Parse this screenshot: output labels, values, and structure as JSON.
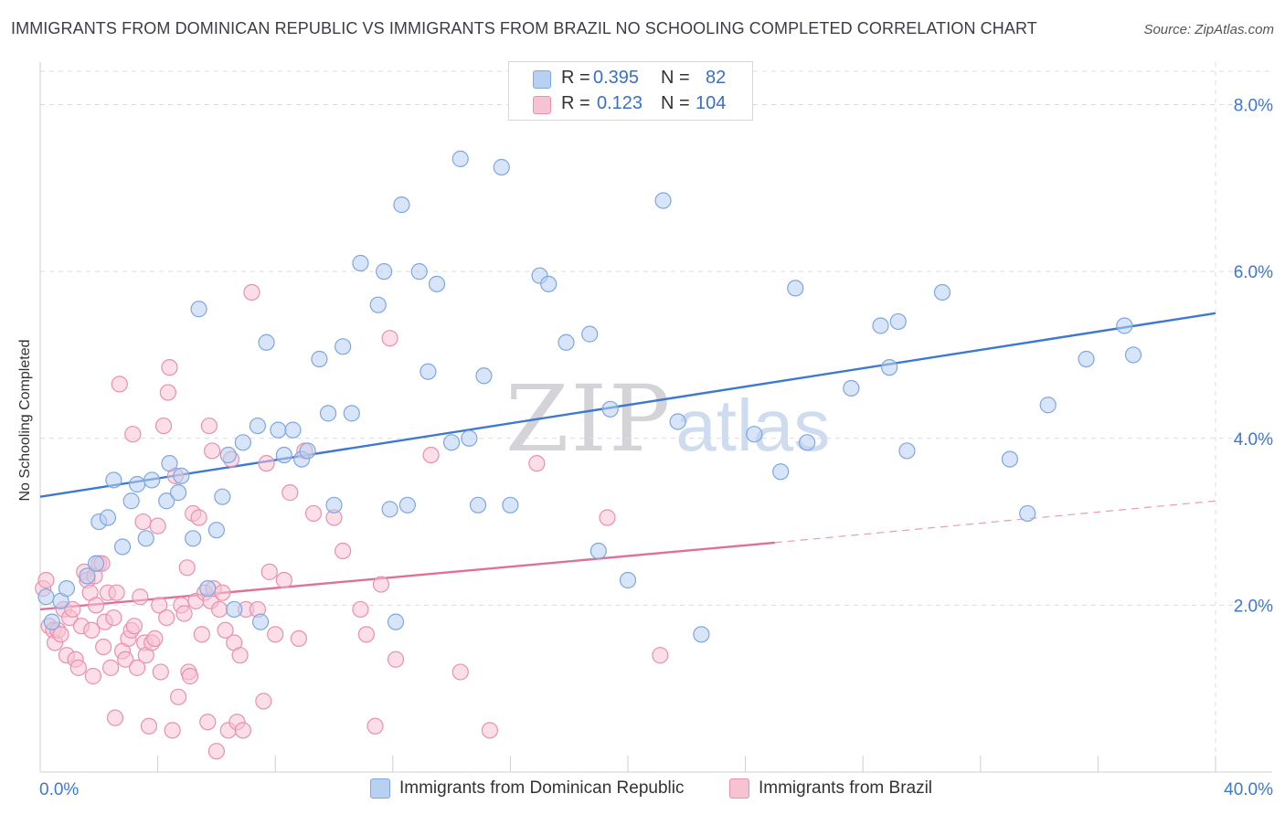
{
  "title": "IMMIGRANTS FROM DOMINICAN REPUBLIC VS IMMIGRANTS FROM BRAZIL NO SCHOOLING COMPLETED CORRELATION CHART",
  "source": "Source: ZipAtlas.com",
  "watermark": {
    "zip": "ZIP",
    "atlas": "atlas"
  },
  "legend": {
    "rows": [
      {
        "r_label": "R =",
        "r_value": "0.395",
        "n_label": "N =",
        "n_value": "82"
      },
      {
        "r_label": "R =",
        "r_value": "0.123",
        "n_label": "N =",
        "n_value": "104"
      }
    ]
  },
  "colors": {
    "dominican_fill": "#b8d0f2",
    "dominican_stroke": "#7fa7dc",
    "dominican_line": "#3d78d1",
    "brazil_fill": "#f7c3d3",
    "brazil_stroke": "#e891ae",
    "brazil_line": "#e0709a",
    "axis_value": "#3d78d1",
    "grid": "#dcdce0"
  },
  "chart_data": {
    "type": "scatter",
    "title": "IMMIGRANTS FROM DOMINICAN REPUBLIC VS IMMIGRANTS FROM BRAZIL NO SCHOOLING COMPLETED CORRELATION CHART",
    "xlabel": "",
    "ylabel": "No Schooling Completed",
    "xlim": [
      0,
      40
    ],
    "ylim": [
      0,
      8.4
    ],
    "x_tick_labels": [
      "0.0%",
      "40.0%"
    ],
    "y_ticks": [
      2,
      4,
      6,
      8
    ],
    "y_tick_labels": [
      "2.0%",
      "4.0%",
      "6.0%",
      "8.0%"
    ],
    "grid": true,
    "legend_position": "top-center",
    "series": [
      {
        "name": "Immigrants from Dominican Republic",
        "points": [
          [
            0.2,
            2.1
          ],
          [
            0.4,
            1.8
          ],
          [
            0.7,
            2.05
          ],
          [
            0.9,
            2.2
          ],
          [
            1.6,
            2.35
          ],
          [
            1.9,
            2.5
          ],
          [
            2.0,
            3.0
          ],
          [
            2.3,
            3.05
          ],
          [
            2.5,
            3.5
          ],
          [
            2.8,
            2.7
          ],
          [
            3.1,
            3.25
          ],
          [
            3.3,
            3.45
          ],
          [
            3.6,
            2.8
          ],
          [
            3.8,
            3.5
          ],
          [
            4.3,
            3.25
          ],
          [
            4.4,
            3.7
          ],
          [
            4.7,
            3.35
          ],
          [
            4.8,
            3.55
          ],
          [
            5.2,
            2.8
          ],
          [
            5.4,
            5.55
          ],
          [
            5.7,
            2.2
          ],
          [
            6.0,
            2.9
          ],
          [
            6.2,
            3.3
          ],
          [
            6.4,
            3.8
          ],
          [
            6.6,
            1.95
          ],
          [
            6.9,
            3.95
          ],
          [
            7.4,
            4.15
          ],
          [
            7.5,
            1.8
          ],
          [
            7.7,
            5.15
          ],
          [
            8.1,
            4.1
          ],
          [
            8.3,
            3.8
          ],
          [
            8.6,
            4.1
          ],
          [
            8.9,
            3.75
          ],
          [
            9.1,
            3.85
          ],
          [
            9.5,
            4.95
          ],
          [
            9.8,
            4.3
          ],
          [
            10.0,
            3.2
          ],
          [
            10.3,
            5.1
          ],
          [
            10.6,
            4.3
          ],
          [
            10.9,
            6.1
          ],
          [
            11.5,
            5.6
          ],
          [
            11.7,
            6.0
          ],
          [
            11.9,
            3.15
          ],
          [
            12.1,
            1.8
          ],
          [
            12.3,
            6.8
          ],
          [
            12.5,
            3.2
          ],
          [
            12.9,
            6.0
          ],
          [
            13.2,
            4.8
          ],
          [
            13.5,
            5.85
          ],
          [
            14.0,
            3.95
          ],
          [
            14.3,
            7.35
          ],
          [
            14.6,
            4.0
          ],
          [
            14.9,
            3.2
          ],
          [
            15.1,
            4.75
          ],
          [
            15.7,
            7.25
          ],
          [
            16.0,
            3.2
          ],
          [
            17.0,
            5.95
          ],
          [
            17.3,
            5.85
          ],
          [
            17.9,
            5.15
          ],
          [
            18.7,
            5.25
          ],
          [
            19.0,
            2.65
          ],
          [
            19.4,
            4.35
          ],
          [
            20.0,
            2.3
          ],
          [
            21.2,
            6.85
          ],
          [
            21.7,
            4.2
          ],
          [
            22.5,
            1.65
          ],
          [
            24.3,
            4.05
          ],
          [
            25.2,
            3.6
          ],
          [
            25.7,
            5.8
          ],
          [
            26.1,
            3.95
          ],
          [
            27.6,
            4.6
          ],
          [
            28.6,
            5.35
          ],
          [
            28.9,
            4.85
          ],
          [
            29.2,
            5.4
          ],
          [
            29.5,
            3.85
          ],
          [
            30.7,
            5.75
          ],
          [
            33.0,
            3.75
          ],
          [
            33.6,
            3.1
          ],
          [
            34.3,
            4.4
          ],
          [
            35.6,
            4.95
          ],
          [
            36.9,
            5.35
          ],
          [
            37.2,
            5.0
          ]
        ]
      },
      {
        "name": "Immigrants from Brazil",
        "points": [
          [
            0.1,
            2.2
          ],
          [
            0.2,
            2.3
          ],
          [
            0.3,
            1.75
          ],
          [
            0.45,
            1.7
          ],
          [
            0.5,
            1.55
          ],
          [
            0.6,
            1.7
          ],
          [
            0.7,
            1.65
          ],
          [
            0.8,
            1.95
          ],
          [
            0.9,
            1.4
          ],
          [
            1.0,
            1.85
          ],
          [
            1.1,
            1.95
          ],
          [
            1.2,
            1.35
          ],
          [
            1.3,
            1.25
          ],
          [
            1.4,
            1.75
          ],
          [
            1.5,
            2.4
          ],
          [
            1.6,
            2.3
          ],
          [
            1.7,
            2.15
          ],
          [
            1.75,
            1.7
          ],
          [
            1.8,
            1.15
          ],
          [
            1.85,
            2.35
          ],
          [
            1.9,
            2.0
          ],
          [
            2.0,
            2.5
          ],
          [
            2.1,
            2.5
          ],
          [
            2.15,
            1.5
          ],
          [
            2.2,
            1.8
          ],
          [
            2.3,
            2.15
          ],
          [
            2.4,
            1.25
          ],
          [
            2.5,
            1.85
          ],
          [
            2.55,
            0.65
          ],
          [
            2.6,
            2.15
          ],
          [
            2.7,
            4.65
          ],
          [
            2.8,
            1.45
          ],
          [
            2.9,
            1.35
          ],
          [
            3.0,
            1.6
          ],
          [
            3.1,
            1.7
          ],
          [
            3.15,
            4.05
          ],
          [
            3.2,
            1.75
          ],
          [
            3.3,
            1.25
          ],
          [
            3.4,
            2.1
          ],
          [
            3.5,
            3.0
          ],
          [
            3.55,
            1.55
          ],
          [
            3.6,
            1.4
          ],
          [
            3.7,
            0.55
          ],
          [
            3.8,
            1.55
          ],
          [
            3.9,
            1.6
          ],
          [
            4.0,
            2.95
          ],
          [
            4.05,
            2.0
          ],
          [
            4.1,
            1.2
          ],
          [
            4.2,
            4.15
          ],
          [
            4.3,
            1.85
          ],
          [
            4.35,
            4.55
          ],
          [
            4.4,
            4.85
          ],
          [
            4.5,
            0.5
          ],
          [
            4.6,
            3.55
          ],
          [
            4.7,
            0.9
          ],
          [
            4.8,
            2.0
          ],
          [
            4.9,
            1.9
          ],
          [
            5.0,
            2.45
          ],
          [
            5.05,
            1.2
          ],
          [
            5.1,
            1.15
          ],
          [
            5.2,
            3.1
          ],
          [
            5.3,
            2.05
          ],
          [
            5.4,
            3.05
          ],
          [
            5.5,
            1.65
          ],
          [
            5.6,
            2.15
          ],
          [
            5.7,
            0.6
          ],
          [
            5.75,
            4.15
          ],
          [
            5.8,
            2.05
          ],
          [
            5.85,
            3.85
          ],
          [
            5.9,
            2.2
          ],
          [
            6.0,
            0.25
          ],
          [
            6.1,
            1.95
          ],
          [
            6.2,
            2.15
          ],
          [
            6.3,
            1.7
          ],
          [
            6.4,
            0.5
          ],
          [
            6.5,
            3.75
          ],
          [
            6.6,
            1.55
          ],
          [
            6.7,
            0.6
          ],
          [
            6.8,
            1.4
          ],
          [
            6.9,
            0.5
          ],
          [
            7.0,
            1.95
          ],
          [
            7.2,
            5.75
          ],
          [
            7.4,
            1.95
          ],
          [
            7.6,
            0.85
          ],
          [
            7.7,
            3.7
          ],
          [
            7.8,
            2.4
          ],
          [
            8.0,
            1.65
          ],
          [
            8.3,
            2.3
          ],
          [
            8.5,
            3.35
          ],
          [
            8.8,
            1.6
          ],
          [
            9.0,
            3.85
          ],
          [
            9.3,
            3.1
          ],
          [
            10.0,
            3.05
          ],
          [
            10.3,
            2.65
          ],
          [
            10.9,
            1.95
          ],
          [
            11.1,
            1.65
          ],
          [
            11.4,
            0.55
          ],
          [
            11.6,
            2.25
          ],
          [
            11.9,
            5.2
          ],
          [
            12.1,
            1.35
          ],
          [
            13.3,
            3.8
          ],
          [
            14.3,
            1.2
          ],
          [
            15.3,
            0.5
          ],
          [
            16.9,
            3.7
          ],
          [
            19.3,
            3.05
          ],
          [
            21.1,
            1.4
          ]
        ]
      }
    ],
    "trendlines": [
      {
        "series": "Immigrants from Dominican Republic",
        "x0": 0,
        "y0": 3.3,
        "x1": 40,
        "y1": 5.5
      },
      {
        "series": "Immigrants from Brazil",
        "x0": 0,
        "y0": 1.95,
        "x1": 25,
        "y1": 2.75,
        "dashed_to": {
          "x": 40,
          "y": 3.25
        }
      }
    ]
  }
}
